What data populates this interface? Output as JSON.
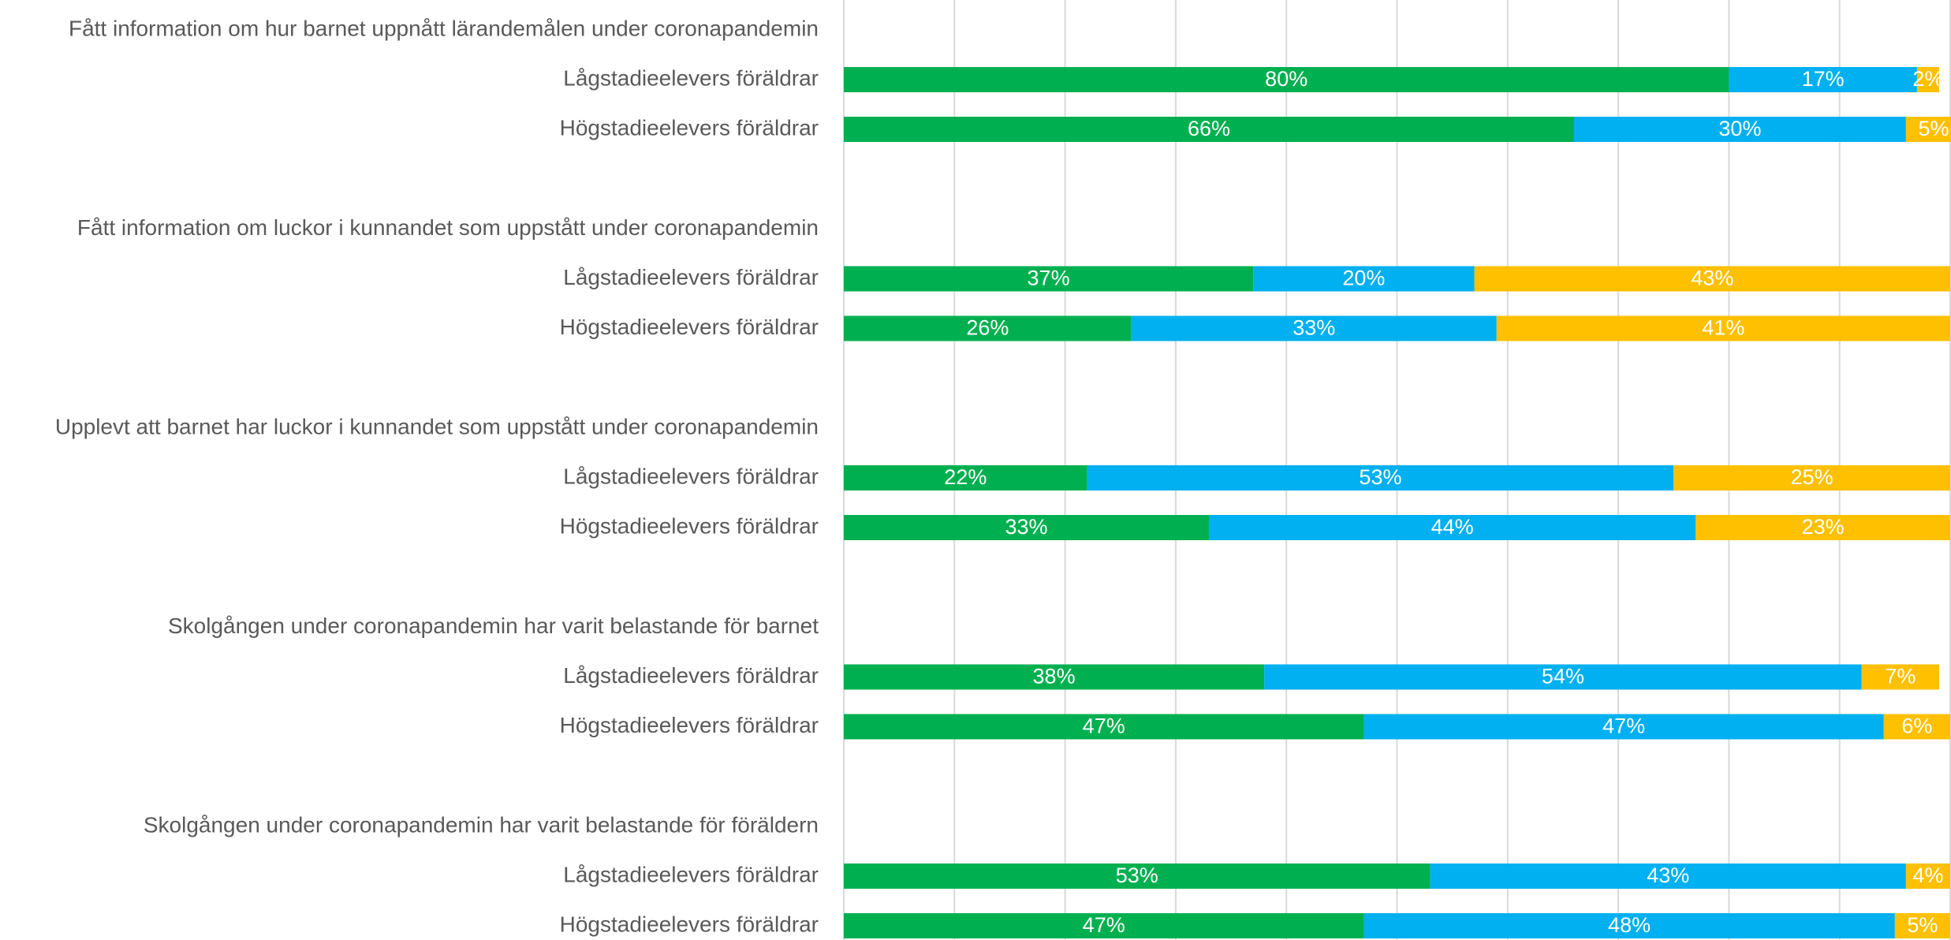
{
  "chart_data": {
    "type": "stacked-hbar",
    "groups": [
      "Fått information om hur barnet uppnått lärandemålen under coronapandemin",
      "Fått information om luckor i kunnandet som uppstått under coronapandemin",
      "Upplevt att barnet har luckor i kunnandet som uppstått under coronapandemin",
      "Skolgången under coronapandemin har varit belastande för barnet",
      "Skolgången under coronapandemin har varit belastande för föräldern"
    ],
    "categories": [
      "Lågstadieelevers föräldrar",
      "Högstadieelevers föräldrar",
      "Lågstadieelevers föräldrar",
      "Högstadieelevers föräldrar",
      "Lågstadieelevers föräldrar",
      "Högstadieelevers föräldrar",
      "Lågstadieelevers föräldrar",
      "Högstadieelevers föräldrar",
      "Lågstadieelevers föräldrar",
      "Högstadieelevers föräldrar"
    ],
    "series": [
      {
        "color": "#00b050",
        "values": [
          80,
          66,
          37,
          26,
          22,
          33,
          38,
          47,
          53,
          47
        ],
        "value_labels": [
          "80%",
          "66%",
          "37%",
          "26%",
          "22%",
          "33%",
          "38%",
          "47%",
          "53%",
          "47%"
        ]
      },
      {
        "color": "#00b0f0",
        "values": [
          17,
          30,
          20,
          33,
          53,
          44,
          54,
          47,
          43,
          48
        ],
        "value_labels": [
          "17%",
          "30%",
          "20%",
          "33%",
          "53%",
          "44%",
          "54%",
          "47%",
          "43%",
          "48%"
        ]
      },
      {
        "color": "#ffc000",
        "values": [
          2,
          5,
          43,
          41,
          25,
          23,
          7,
          6,
          4,
          5
        ],
        "value_labels": [
          "2%",
          "5%",
          "43%",
          "41%",
          "25%",
          "23%",
          "7%",
          "6%",
          "4%",
          "5%"
        ]
      }
    ],
    "xlim": [
      0,
      100
    ],
    "xticks": [
      0,
      10,
      20,
      30,
      40,
      50,
      60,
      70,
      80,
      90,
      100
    ],
    "grid": true
  }
}
